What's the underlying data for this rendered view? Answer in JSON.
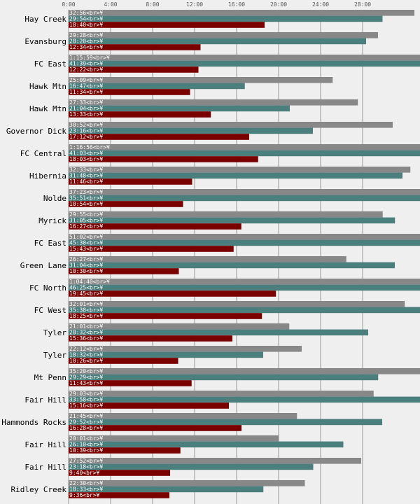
{
  "chart_data": {
    "type": "bar",
    "orientation": "horizontal",
    "xlim_seconds": [
      0,
      2040
    ],
    "x_ticks": [
      "0:00",
      "4:00",
      "8:00",
      "12:00",
      "16:00",
      "20:00",
      "24:00",
      "28:00"
    ],
    "grid": true,
    "colors": [
      "#888888",
      "#4a7f7d",
      "#7a0000"
    ],
    "categories": [
      "Hay Creek",
      "Evansburg",
      "FC East",
      "Hawk Mtn",
      "Hawk Mtn",
      "Governor Dick",
      "FC Central",
      "Hibernia",
      "Nolde",
      "Myrick",
      "FC East",
      "Green Lane",
      "FC North",
      "FC West",
      "Tyler",
      "Tyler",
      "Mt Penn",
      "Fair Hill",
      "Hammonds Rocks",
      "Fair Hill",
      "Fair Hill",
      "Ridley Creek"
    ],
    "series": [
      {
        "labels": [
          "32:56<br>¥",
          "29:28<br>¥",
          "1:15:59<br>¥",
          "25:09<br>¥",
          "27:33<br>¥",
          "30:52<br>¥",
          "1:16:56<br>¥",
          "32:33<br>¥",
          "37:23<br>¥",
          "29:55<br>¥",
          "51:02<br>¥",
          "26:27<br>¥",
          "1:04:40<br>¥",
          "32:01<br>¥",
          "21:01<br>¥",
          "22:12<br>¥",
          "35:20<br>¥",
          "29:03<br>¥",
          "21:45<br>¥",
          "20:01<br>¥",
          "27:52<br>¥",
          "22:30<br>¥"
        ],
        "values": [
          1976,
          1768,
          4559,
          1509,
          1653,
          1852,
          4616,
          1953,
          2243,
          1795,
          3062,
          1587,
          3880,
          1921,
          1261,
          1332,
          2120,
          1743,
          1305,
          1201,
          1672,
          1350
        ]
      },
      {
        "labels": [
          "29:54<br>¥",
          "28:20<br>¥",
          "41:39<br>¥",
          "16:47<br>¥",
          "21:04<br>¥",
          "23:16<br>¥",
          "41:03<br>¥",
          "31:48<br>¥",
          "35:51<br>¥",
          "31:05<br>¥",
          "45:30<br>¥",
          "31:04<br>¥",
          "46:25<br>¥",
          "35:38<br>¥",
          "28:32<br>¥",
          "18:32<br>¥",
          "29:29<br>¥",
          "33:58<br>¥",
          "29:52<br>¥",
          "26:10<br>¥",
          "23:18<br>¥",
          "18:33<br>¥"
        ],
        "values": [
          1794,
          1700,
          2499,
          1007,
          1264,
          1396,
          2463,
          1908,
          2151,
          1865,
          2730,
          1864,
          2785,
          2138,
          1712,
          1112,
          1769,
          2038,
          1792,
          1570,
          1398,
          1113
        ]
      },
      {
        "labels": [
          "18:40<br>¥",
          "12:34<br>¥",
          "12:22<br>¥",
          "11:34<br>¥",
          "13:33<br>¥",
          "17:12<br>¥",
          "18:03<br>¥",
          "11:46<br>¥",
          "10:54<br>¥",
          "16:27<br>¥",
          "15:43<br>¥",
          "10:30<br>¥",
          "19:45<br>¥",
          "18:25<br>¥",
          "15:36<br>¥",
          "10:26<br>¥",
          "11:43<br>¥",
          "15:16<br>¥",
          "16:28<br>¥",
          "10:39<br>¥",
          "9:40<br>¥",
          "9:36<br>¥"
        ],
        "values": [
          1120,
          754,
          742,
          694,
          813,
          1032,
          1083,
          706,
          654,
          987,
          943,
          630,
          1185,
          1105,
          936,
          626,
          703,
          916,
          988,
          639,
          580,
          576
        ]
      }
    ]
  }
}
